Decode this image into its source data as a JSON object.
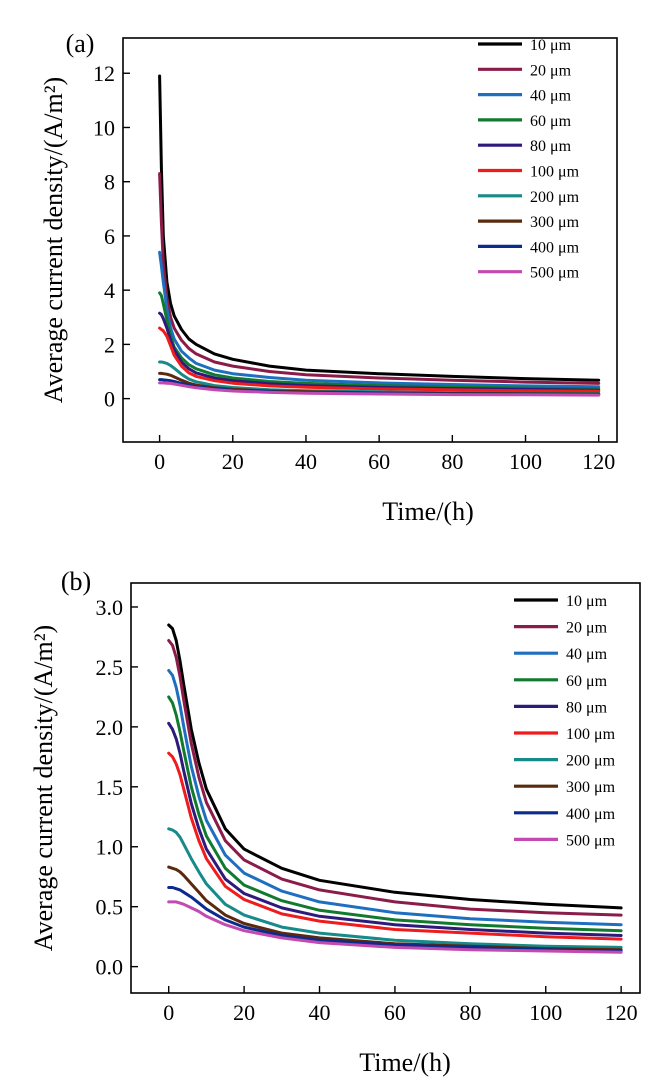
{
  "chart_data": [
    {
      "type": "line",
      "panel_label": "(a)",
      "xlabel": "Time/(h)",
      "ylabel": "Average current density/(A/m²)",
      "xlim": [
        -10,
        125
      ],
      "ylim": [
        -1.6,
        13.3
      ],
      "xticks": [
        0,
        20,
        40,
        60,
        80,
        100,
        120
      ],
      "yticks": [
        0,
        2,
        4,
        6,
        8,
        10,
        12
      ],
      "legend": "top-right",
      "grid": false,
      "series": [
        {
          "name": "10 μm",
          "color": "#000000",
          "x": [
            0,
            0.5,
            1,
            2,
            3,
            4,
            6,
            8,
            10,
            15,
            20,
            30,
            40,
            60,
            80,
            100,
            120
          ],
          "y": [
            11.9,
            8.5,
            6.0,
            4.3,
            3.5,
            3.05,
            2.55,
            2.2,
            2.0,
            1.65,
            1.45,
            1.2,
            1.05,
            0.92,
            0.82,
            0.74,
            0.68
          ]
        },
        {
          "name": "20 μm",
          "color": "#8b1c4a",
          "x": [
            0,
            0.5,
            1,
            2,
            3,
            4,
            6,
            8,
            10,
            15,
            20,
            30,
            40,
            60,
            80,
            100,
            120
          ],
          "y": [
            8.3,
            6.5,
            5.0,
            3.7,
            3.0,
            2.6,
            2.15,
            1.85,
            1.65,
            1.35,
            1.2,
            1.0,
            0.88,
            0.76,
            0.68,
            0.61,
            0.56
          ]
        },
        {
          "name": "40 μm",
          "color": "#1f6fc0",
          "x": [
            0,
            0.5,
            1,
            2,
            3,
            4,
            6,
            8,
            10,
            15,
            20,
            30,
            40,
            60,
            80,
            100,
            120
          ],
          "y": [
            5.4,
            4.9,
            4.3,
            3.3,
            2.6,
            2.2,
            1.75,
            1.5,
            1.3,
            1.05,
            0.92,
            0.78,
            0.68,
            0.58,
            0.52,
            0.47,
            0.44
          ]
        },
        {
          "name": "60 μm",
          "color": "#117a2e",
          "x": [
            0,
            0.5,
            1,
            2,
            3,
            4,
            6,
            8,
            10,
            15,
            20,
            30,
            40,
            60,
            80,
            100,
            120
          ],
          "y": [
            3.9,
            3.8,
            3.5,
            2.9,
            2.3,
            1.9,
            1.5,
            1.25,
            1.1,
            0.88,
            0.76,
            0.63,
            0.56,
            0.48,
            0.43,
            0.39,
            0.36
          ]
        },
        {
          "name": "80 μm",
          "color": "#2e1a7a",
          "x": [
            0,
            0.5,
            1,
            2,
            3,
            4,
            6,
            8,
            10,
            15,
            20,
            30,
            40,
            60,
            80,
            100,
            120
          ],
          "y": [
            3.15,
            3.1,
            2.95,
            2.6,
            2.15,
            1.8,
            1.35,
            1.1,
            0.95,
            0.76,
            0.66,
            0.55,
            0.48,
            0.41,
            0.37,
            0.34,
            0.31
          ]
        },
        {
          "name": "100 μm",
          "color": "#ee1c1c",
          "x": [
            0,
            0.5,
            1,
            2,
            3,
            4,
            6,
            8,
            10,
            15,
            20,
            30,
            40,
            60,
            80,
            100,
            120
          ],
          "y": [
            2.6,
            2.55,
            2.5,
            2.3,
            1.95,
            1.6,
            1.2,
            0.95,
            0.82,
            0.66,
            0.57,
            0.47,
            0.42,
            0.36,
            0.32,
            0.29,
            0.27
          ]
        },
        {
          "name": "200 μm",
          "color": "#178a8a",
          "x": [
            0,
            0.5,
            1,
            2,
            3,
            4,
            6,
            8,
            10,
            15,
            20,
            30,
            40,
            60,
            80,
            100,
            120
          ],
          "y": [
            1.35,
            1.35,
            1.34,
            1.3,
            1.22,
            1.12,
            0.9,
            0.72,
            0.62,
            0.48,
            0.41,
            0.33,
            0.29,
            0.25,
            0.22,
            0.2,
            0.19
          ]
        },
        {
          "name": "300 μm",
          "color": "#5a2a0e",
          "x": [
            0,
            0.5,
            1,
            2,
            3,
            4,
            6,
            8,
            10,
            15,
            20,
            30,
            40,
            60,
            80,
            100,
            120
          ],
          "y": [
            0.93,
            0.93,
            0.92,
            0.9,
            0.86,
            0.8,
            0.68,
            0.57,
            0.5,
            0.4,
            0.34,
            0.28,
            0.25,
            0.21,
            0.19,
            0.18,
            0.17
          ]
        },
        {
          "name": "400 μm",
          "color": "#0d2b8c",
          "x": [
            0,
            0.5,
            1,
            2,
            3,
            4,
            6,
            8,
            10,
            15,
            20,
            30,
            40,
            60,
            80,
            100,
            120
          ],
          "y": [
            0.7,
            0.7,
            0.69,
            0.68,
            0.66,
            0.63,
            0.56,
            0.49,
            0.44,
            0.36,
            0.31,
            0.25,
            0.22,
            0.19,
            0.17,
            0.16,
            0.15
          ]
        },
        {
          "name": "500 μm",
          "color": "#c24ab0",
          "x": [
            0,
            0.5,
            1,
            2,
            3,
            4,
            6,
            8,
            10,
            15,
            20,
            30,
            40,
            60,
            80,
            100,
            120
          ],
          "y": [
            0.58,
            0.58,
            0.58,
            0.57,
            0.56,
            0.54,
            0.49,
            0.44,
            0.4,
            0.33,
            0.28,
            0.23,
            0.2,
            0.17,
            0.15,
            0.14,
            0.13
          ]
        }
      ]
    },
    {
      "type": "line",
      "panel_label": "(b)",
      "xlabel": "Time/(h)",
      "ylabel": "Average current density/(A/m²)",
      "xlim": [
        -10,
        125
      ],
      "ylim": [
        -0.22,
        3.2
      ],
      "xticks": [
        0,
        20,
        40,
        60,
        80,
        100,
        120
      ],
      "yticks": [
        0.0,
        0.5,
        1.0,
        1.5,
        2.0,
        2.5,
        3.0
      ],
      "legend": "top-right",
      "grid": false,
      "series": [
        {
          "name": "10 μm",
          "color": "#000000",
          "x": [
            0,
            1,
            2,
            3,
            4,
            6,
            8,
            10,
            15,
            20,
            30,
            40,
            60,
            80,
            100,
            120
          ],
          "y": [
            2.85,
            2.82,
            2.72,
            2.55,
            2.35,
            1.98,
            1.7,
            1.48,
            1.15,
            0.98,
            0.82,
            0.72,
            0.62,
            0.56,
            0.52,
            0.49
          ]
        },
        {
          "name": "20 μm",
          "color": "#8b1c4a",
          "x": [
            0,
            1,
            2,
            3,
            4,
            6,
            8,
            10,
            15,
            20,
            30,
            40,
            60,
            80,
            100,
            120
          ],
          "y": [
            2.72,
            2.68,
            2.58,
            2.42,
            2.22,
            1.86,
            1.58,
            1.37,
            1.05,
            0.89,
            0.73,
            0.64,
            0.54,
            0.48,
            0.45,
            0.43
          ]
        },
        {
          "name": "40 μm",
          "color": "#1f6fc0",
          "x": [
            0,
            1,
            2,
            3,
            4,
            6,
            8,
            10,
            15,
            20,
            30,
            40,
            60,
            80,
            100,
            120
          ],
          "y": [
            2.47,
            2.43,
            2.33,
            2.18,
            2.0,
            1.67,
            1.42,
            1.22,
            0.93,
            0.78,
            0.63,
            0.54,
            0.45,
            0.4,
            0.37,
            0.35
          ]
        },
        {
          "name": "60 μm",
          "color": "#117a2e",
          "x": [
            0,
            1,
            2,
            3,
            4,
            6,
            8,
            10,
            15,
            20,
            30,
            40,
            60,
            80,
            100,
            120
          ],
          "y": [
            2.25,
            2.2,
            2.1,
            1.96,
            1.8,
            1.5,
            1.27,
            1.09,
            0.82,
            0.68,
            0.55,
            0.47,
            0.39,
            0.35,
            0.32,
            0.3
          ]
        },
        {
          "name": "80 μm",
          "color": "#2e1a7a",
          "x": [
            0,
            1,
            2,
            3,
            4,
            6,
            8,
            10,
            15,
            20,
            30,
            40,
            60,
            80,
            100,
            120
          ],
          "y": [
            2.03,
            1.98,
            1.9,
            1.78,
            1.63,
            1.36,
            1.15,
            0.98,
            0.73,
            0.61,
            0.49,
            0.42,
            0.35,
            0.31,
            0.28,
            0.26
          ]
        },
        {
          "name": "100 μm",
          "color": "#ee1c1c",
          "x": [
            0,
            1,
            2,
            3,
            4,
            6,
            8,
            10,
            15,
            20,
            30,
            40,
            60,
            80,
            100,
            120
          ],
          "y": [
            1.78,
            1.75,
            1.69,
            1.6,
            1.48,
            1.24,
            1.05,
            0.9,
            0.67,
            0.56,
            0.44,
            0.38,
            0.31,
            0.28,
            0.25,
            0.23
          ]
        },
        {
          "name": "200 μm",
          "color": "#178a8a",
          "x": [
            0,
            1,
            2,
            3,
            4,
            6,
            8,
            10,
            15,
            20,
            30,
            40,
            60,
            80,
            100,
            120
          ],
          "y": [
            1.15,
            1.14,
            1.12,
            1.08,
            1.02,
            0.9,
            0.79,
            0.69,
            0.52,
            0.43,
            0.33,
            0.28,
            0.22,
            0.19,
            0.17,
            0.16
          ]
        },
        {
          "name": "300 μm",
          "color": "#5a2a0e",
          "x": [
            0,
            1,
            2,
            3,
            4,
            6,
            8,
            10,
            15,
            20,
            30,
            40,
            60,
            80,
            100,
            120
          ],
          "y": [
            0.83,
            0.82,
            0.81,
            0.79,
            0.76,
            0.69,
            0.62,
            0.55,
            0.43,
            0.36,
            0.28,
            0.24,
            0.19,
            0.17,
            0.15,
            0.14
          ]
        },
        {
          "name": "400 μm",
          "color": "#0d2b8c",
          "x": [
            0,
            1,
            2,
            3,
            4,
            6,
            8,
            10,
            15,
            20,
            30,
            40,
            60,
            80,
            100,
            120
          ],
          "y": [
            0.66,
            0.66,
            0.65,
            0.64,
            0.62,
            0.58,
            0.53,
            0.48,
            0.39,
            0.33,
            0.26,
            0.22,
            0.18,
            0.16,
            0.14,
            0.13
          ]
        },
        {
          "name": "500 μm",
          "color": "#c24ab0",
          "x": [
            0,
            1,
            2,
            3,
            4,
            6,
            8,
            10,
            15,
            20,
            30,
            40,
            60,
            80,
            100,
            120
          ],
          "y": [
            0.54,
            0.54,
            0.54,
            0.53,
            0.52,
            0.49,
            0.46,
            0.42,
            0.35,
            0.3,
            0.24,
            0.2,
            0.16,
            0.14,
            0.13,
            0.12
          ]
        }
      ]
    }
  ]
}
